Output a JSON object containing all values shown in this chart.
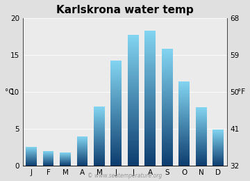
{
  "title": "Karlskrona water temp",
  "months": [
    "J",
    "F",
    "M",
    "A",
    "M",
    "J",
    "J",
    "A",
    "S",
    "O",
    "N",
    "D"
  ],
  "values_c": [
    2.6,
    2.0,
    1.8,
    4.0,
    8.0,
    14.2,
    17.7,
    18.3,
    15.8,
    11.4,
    7.9,
    4.9
  ],
  "ylabel_left": "°C",
  "ylabel_right": "°F",
  "ylim_c": [
    0,
    20
  ],
  "yticks_c": [
    0,
    5,
    10,
    15,
    20
  ],
  "yticks_f": [
    32,
    41,
    50,
    59,
    68
  ],
  "bar_color_top": "#82d4f0",
  "bar_color_bottom": "#0c3c6e",
  "fig_bg_color": "#e0e0e0",
  "plot_bg_color": "#ebebeb",
  "title_fontsize": 11,
  "axis_fontsize": 7.5,
  "tick_fontsize": 7.5,
  "watermark": "© www.seatemperature.org",
  "bar_width": 0.65
}
